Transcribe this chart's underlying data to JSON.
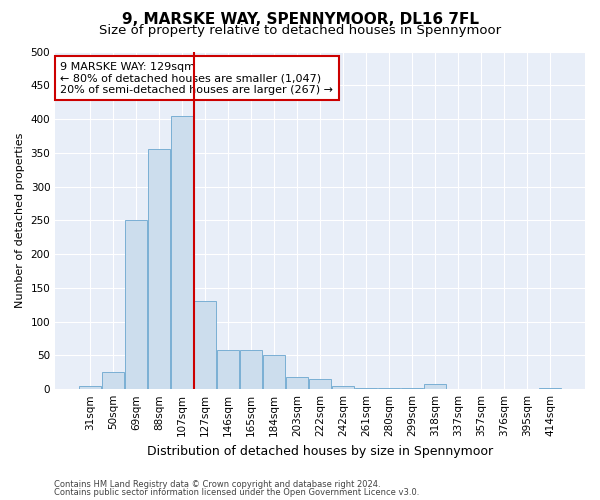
{
  "title": "9, MARSKE WAY, SPENNYMOOR, DL16 7FL",
  "subtitle": "Size of property relative to detached houses in Spennymoor",
  "xlabel": "Distribution of detached houses by size in Spennymoor",
  "ylabel": "Number of detached properties",
  "bar_categories": [
    "31sqm",
    "50sqm",
    "69sqm",
    "88sqm",
    "107sqm",
    "127sqm",
    "146sqm",
    "165sqm",
    "184sqm",
    "203sqm",
    "222sqm",
    "242sqm",
    "261sqm",
    "280sqm",
    "299sqm",
    "318sqm",
    "337sqm",
    "357sqm",
    "376sqm",
    "395sqm",
    "414sqm"
  ],
  "bar_values": [
    5,
    25,
    250,
    355,
    405,
    130,
    58,
    58,
    50,
    18,
    15,
    5,
    2,
    2,
    2,
    8,
    1,
    1,
    1,
    1,
    2
  ],
  "bar_color": "#ccdded",
  "bar_edge_color": "#7aafd4",
  "vline_x_index": 5,
  "vline_color": "#cc0000",
  "annotation_text": "9 MARSKE WAY: 129sqm\n← 80% of detached houses are smaller (1,047)\n20% of semi-detached houses are larger (267) →",
  "annotation_box_facecolor": "white",
  "annotation_box_edgecolor": "#cc0000",
  "ylim": [
    0,
    500
  ],
  "yticks": [
    0,
    50,
    100,
    150,
    200,
    250,
    300,
    350,
    400,
    450,
    500
  ],
  "plot_bg_color": "#e8eef8",
  "footer_line1": "Contains HM Land Registry data © Crown copyright and database right 2024.",
  "footer_line2": "Contains public sector information licensed under the Open Government Licence v3.0.",
  "title_fontsize": 11,
  "subtitle_fontsize": 9.5,
  "ylabel_fontsize": 8,
  "xlabel_fontsize": 9,
  "tick_fontsize": 7.5,
  "annot_fontsize": 8,
  "footer_fontsize": 6
}
